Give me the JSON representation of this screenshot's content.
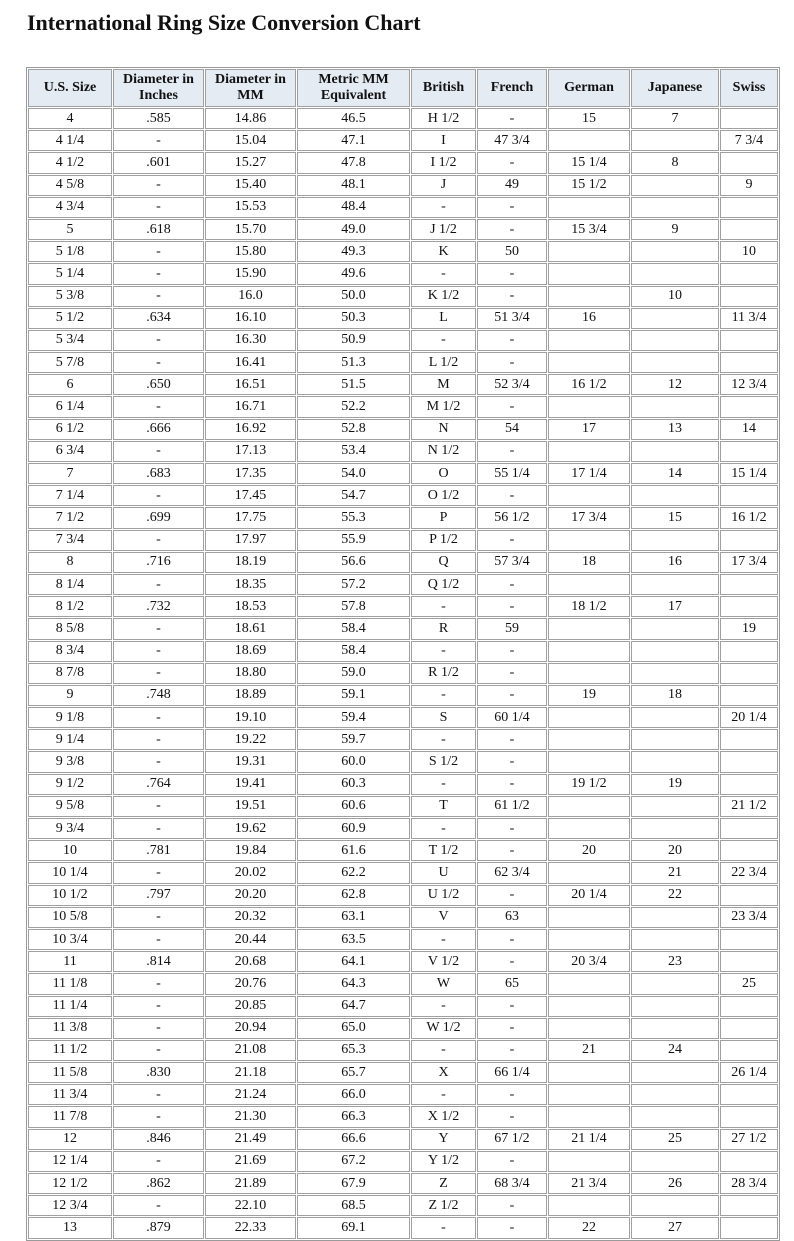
{
  "title": "International Ring Size Conversion Chart",
  "columns": [
    "U.S. Size",
    "Diameter in Inches",
    "Diameter in MM",
    "Metric MM Equivalent",
    "British",
    "French",
    "German",
    "Japanese",
    "Swiss"
  ],
  "header_color": "#e4ebf3",
  "rows": [
    [
      "4",
      ".585",
      "14.86",
      "46.5",
      "H 1/2",
      "-",
      "15",
      "7",
      ""
    ],
    [
      "4 1/4",
      "-",
      "15.04",
      "47.1",
      "I",
      "47 3/4",
      "",
      "",
      "7 3/4"
    ],
    [
      "4 1/2",
      ".601",
      "15.27",
      "47.8",
      "I 1/2",
      "-",
      "15 1/4",
      "8",
      ""
    ],
    [
      "4 5/8",
      "-",
      "15.40",
      "48.1",
      "J",
      "49",
      "15 1/2",
      "",
      "9"
    ],
    [
      "4 3/4",
      "-",
      "15.53",
      "48.4",
      "-",
      "-",
      "",
      "",
      ""
    ],
    [
      "5",
      ".618",
      "15.70",
      "49.0",
      "J 1/2",
      "-",
      "15 3/4",
      "9",
      ""
    ],
    [
      "5 1/8",
      "-",
      "15.80",
      "49.3",
      "K",
      "50",
      "",
      "",
      "10"
    ],
    [
      "5 1/4",
      "-",
      "15.90",
      "49.6",
      "-",
      "-",
      "",
      "",
      ""
    ],
    [
      "5 3/8",
      "-",
      "16.0",
      "50.0",
      "K 1/2",
      "-",
      "",
      "10",
      ""
    ],
    [
      "5 1/2",
      ".634",
      "16.10",
      "50.3",
      "L",
      "51 3/4",
      "16",
      "",
      "11 3/4"
    ],
    [
      "5 3/4",
      "-",
      "16.30",
      "50.9",
      "-",
      "-",
      "",
      "",
      ""
    ],
    [
      "5 7/8",
      "-",
      "16.41",
      "51.3",
      "L 1/2",
      "-",
      "",
      "",
      ""
    ],
    [
      "6",
      ".650",
      "16.51",
      "51.5",
      "M",
      "52 3/4",
      "16 1/2",
      "12",
      "12 3/4"
    ],
    [
      "6 1/4",
      "-",
      "16.71",
      "52.2",
      "M 1/2",
      "-",
      "",
      "",
      ""
    ],
    [
      "6 1/2",
      ".666",
      "16.92",
      "52.8",
      "N",
      "54",
      "17",
      "13",
      "14"
    ],
    [
      "6 3/4",
      "-",
      "17.13",
      "53.4",
      "N 1/2",
      "-",
      "",
      "",
      ""
    ],
    [
      "7",
      ".683",
      "17.35",
      "54.0",
      "O",
      "55 1/4",
      "17 1/4",
      "14",
      "15 1/4"
    ],
    [
      "7 1/4",
      "-",
      "17.45",
      "54.7",
      "O 1/2",
      "-",
      "",
      "",
      ""
    ],
    [
      "7 1/2",
      ".699",
      "17.75",
      "55.3",
      "P",
      "56 1/2",
      "17 3/4",
      "15",
      "16 1/2"
    ],
    [
      "7 3/4",
      "-",
      "17.97",
      "55.9",
      "P 1/2",
      "-",
      "",
      "",
      ""
    ],
    [
      "8",
      ".716",
      "18.19",
      "56.6",
      "Q",
      "57 3/4",
      "18",
      "16",
      "17 3/4"
    ],
    [
      "8 1/4",
      "-",
      "18.35",
      "57.2",
      "Q 1/2",
      "-",
      "",
      "",
      ""
    ],
    [
      "8 1/2",
      ".732",
      "18.53",
      "57.8",
      "-",
      "-",
      "18 1/2",
      "17",
      ""
    ],
    [
      "8 5/8",
      "-",
      "18.61",
      "58.4",
      "R",
      "59",
      "",
      "",
      "19"
    ],
    [
      "8 3/4",
      "-",
      "18.69",
      "58.4",
      "-",
      "-",
      "",
      "",
      ""
    ],
    [
      "8 7/8",
      "-",
      "18.80",
      "59.0",
      "R 1/2",
      "-",
      "",
      "",
      ""
    ],
    [
      "9",
      ".748",
      "18.89",
      "59.1",
      "-",
      "-",
      "19",
      "18",
      ""
    ],
    [
      "9 1/8",
      "-",
      "19.10",
      "59.4",
      "S",
      "60 1/4",
      "",
      "",
      "20 1/4"
    ],
    [
      "9 1/4",
      "-",
      "19.22",
      "59.7",
      "-",
      "-",
      "",
      "",
      ""
    ],
    [
      "9 3/8",
      "-",
      "19.31",
      "60.0",
      "S 1/2",
      "-",
      "",
      "",
      ""
    ],
    [
      "9 1/2",
      ".764",
      "19.41",
      "60.3",
      "-",
      "-",
      "19 1/2",
      "19",
      ""
    ],
    [
      "9 5/8",
      "-",
      "19.51",
      "60.6",
      "T",
      "61 1/2",
      "",
      "",
      "21 1/2"
    ],
    [
      "9 3/4",
      "-",
      "19.62",
      "60.9",
      "-",
      "-",
      "",
      "",
      ""
    ],
    [
      "10",
      ".781",
      "19.84",
      "61.6",
      "T 1/2",
      "-",
      "20",
      "20",
      ""
    ],
    [
      "10 1/4",
      "-",
      "20.02",
      "62.2",
      "U",
      "62 3/4",
      "",
      "21",
      "22 3/4"
    ],
    [
      "10 1/2",
      ".797",
      "20.20",
      "62.8",
      "U 1/2",
      "-",
      "20 1/4",
      "22",
      ""
    ],
    [
      "10 5/8",
      "-",
      "20.32",
      "63.1",
      "V",
      "63",
      "",
      "",
      "23 3/4"
    ],
    [
      "10 3/4",
      "-",
      "20.44",
      "63.5",
      "-",
      "-",
      "",
      "",
      ""
    ],
    [
      "11",
      ".814",
      "20.68",
      "64.1",
      "V 1/2",
      "-",
      "20 3/4",
      "23",
      ""
    ],
    [
      "11 1/8",
      "-",
      "20.76",
      "64.3",
      "W",
      "65",
      "",
      "",
      "25"
    ],
    [
      "11 1/4",
      "-",
      "20.85",
      "64.7",
      "-",
      "-",
      "",
      "",
      ""
    ],
    [
      "11 3/8",
      "-",
      "20.94",
      "65.0",
      "W 1/2",
      "-",
      "",
      "",
      ""
    ],
    [
      "11 1/2",
      "-",
      "21.08",
      "65.3",
      "-",
      "-",
      "21",
      "24",
      ""
    ],
    [
      "11 5/8",
      ".830",
      "21.18",
      "65.7",
      "X",
      "66 1/4",
      "",
      "",
      "26 1/4"
    ],
    [
      "11 3/4",
      "-",
      "21.24",
      "66.0",
      "-",
      "-",
      "",
      "",
      ""
    ],
    [
      "11 7/8",
      "-",
      "21.30",
      "66.3",
      "X 1/2",
      "-",
      "",
      "",
      ""
    ],
    [
      "12",
      ".846",
      "21.49",
      "66.6",
      "Y",
      "67 1/2",
      "21 1/4",
      "25",
      "27 1/2"
    ],
    [
      "12 1/4",
      "-",
      "21.69",
      "67.2",
      "Y 1/2",
      "-",
      "",
      "",
      ""
    ],
    [
      "12 1/2",
      ".862",
      "21.89",
      "67.9",
      "Z",
      "68 3/4",
      "21 3/4",
      "26",
      "28 3/4"
    ],
    [
      "12 3/4",
      "-",
      "22.10",
      "68.5",
      "Z 1/2",
      "-",
      "",
      "",
      ""
    ],
    [
      "13",
      ".879",
      "22.33",
      "69.1",
      "-",
      "-",
      "22",
      "27",
      ""
    ]
  ]
}
